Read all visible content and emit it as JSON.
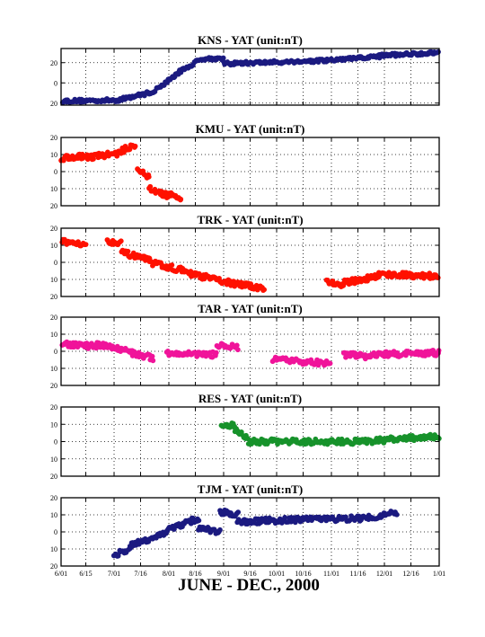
{
  "figure": {
    "xlabel": "JUNE - DEC., 2000",
    "x_tick_labels": [
      "6/01",
      "6/15",
      "7/01",
      "7/16",
      "8/01",
      "8/16",
      "9/01",
      "9/16",
      "10/01",
      "10/16",
      "11/01",
      "11/16",
      "12/01",
      "12/16",
      "1/01"
    ]
  },
  "chart_data": [
    {
      "type": "scatter",
      "title": "KNS - YAT (unit:nT)",
      "color": "#1b1a80",
      "xlim": [
        0,
        214
      ],
      "ylim": [
        -22,
        34
      ],
      "y_ticks": [
        -20,
        0,
        20
      ],
      "y_tick_labels": [
        "20",
        "0",
        "20"
      ],
      "grid": true,
      "x_unit": "days since 6/01/2000",
      "segments": [
        {
          "x": [
            0,
            32
          ],
          "y": [
            -18,
            -17
          ]
        },
        {
          "x": [
            32,
            52
          ],
          "y": [
            -17,
            -9
          ]
        },
        {
          "x": [
            52,
            68
          ],
          "y": [
            -9,
            12
          ]
        },
        {
          "x": [
            68,
            80
          ],
          "y": [
            12,
            24
          ]
        },
        {
          "x": [
            80,
            92
          ],
          "y": [
            24,
            24
          ]
        },
        {
          "x": [
            92,
            150
          ],
          "y": [
            19,
            22
          ]
        },
        {
          "x": [
            150,
            180
          ],
          "y": [
            22,
            26
          ]
        },
        {
          "x": [
            180,
            214
          ],
          "y": [
            27,
            30
          ]
        }
      ]
    },
    {
      "type": "scatter",
      "title": "KMU - YAT (unit:nT)",
      "color": "#ff1100",
      "xlim": [
        0,
        214
      ],
      "ylim": [
        -20,
        20
      ],
      "y_ticks": [
        -20,
        -10,
        0,
        10,
        20
      ],
      "y_tick_labels": [
        "20",
        "10",
        "0",
        "10",
        "20"
      ],
      "grid": true,
      "x_unit": "days since 6/01/2000",
      "segments": [
        {
          "x": [
            0,
            12
          ],
          "y": [
            8,
            9
          ]
        },
        {
          "x": [
            12,
            34
          ],
          "y": [
            8,
            11
          ]
        },
        {
          "x": [
            34,
            42
          ],
          "y": [
            12,
            16
          ]
        },
        {
          "x": [
            43,
            50
          ],
          "y": [
            2,
            -4
          ]
        },
        {
          "x": [
            50,
            60
          ],
          "y": [
            -10,
            -14
          ]
        },
        {
          "x": [
            60,
            68
          ],
          "y": [
            -13,
            -16
          ]
        }
      ]
    },
    {
      "type": "scatter",
      "title": "TRK - YAT (unit:nT)",
      "color": "#ff1100",
      "xlim": [
        0,
        214
      ],
      "ylim": [
        -20,
        20
      ],
      "y_ticks": [
        -20,
        -10,
        0,
        10,
        20
      ],
      "y_tick_labels": [
        "20",
        "10",
        "0",
        "10",
        "20"
      ],
      "grid": true,
      "x_unit": "days since 6/01/2000",
      "segments": [
        {
          "x": [
            0,
            14
          ],
          "y": [
            12,
            11
          ]
        },
        {
          "x": [
            26,
            34
          ],
          "y": [
            12,
            12
          ]
        },
        {
          "x": [
            34,
            50
          ],
          "y": [
            6,
            1
          ]
        },
        {
          "x": [
            50,
            70
          ],
          "y": [
            0,
            -5
          ]
        },
        {
          "x": [
            70,
            100
          ],
          "y": [
            -6,
            -13
          ]
        },
        {
          "x": [
            100,
            115
          ],
          "y": [
            -13,
            -15
          ]
        },
        {
          "x": [
            150,
            160
          ],
          "y": [
            -11,
            -14
          ]
        },
        {
          "x": [
            160,
            180
          ],
          "y": [
            -12,
            -8
          ]
        },
        {
          "x": [
            180,
            214
          ],
          "y": [
            -7,
            -8
          ]
        }
      ]
    },
    {
      "type": "scatter",
      "title": "TAR - YAT (unit:nT)",
      "color": "#f0149a",
      "xlim": [
        0,
        214
      ],
      "ylim": [
        -20,
        20
      ],
      "y_ticks": [
        -20,
        -10,
        0,
        10,
        20
      ],
      "y_tick_labels": [
        "20",
        "10",
        "0",
        "10",
        "20"
      ],
      "grid": true,
      "x_unit": "days since 6/01/2000",
      "segments": [
        {
          "x": [
            0,
            20
          ],
          "y": [
            4,
            3
          ]
        },
        {
          "x": [
            20,
            40
          ],
          "y": [
            4,
            0
          ]
        },
        {
          "x": [
            40,
            52
          ],
          "y": [
            -1,
            -4
          ]
        },
        {
          "x": [
            60,
            88
          ],
          "y": [
            -1,
            -2
          ]
        },
        {
          "x": [
            88,
            100
          ],
          "y": [
            4,
            2
          ]
        },
        {
          "x": [
            120,
            152
          ],
          "y": [
            -5,
            -7
          ]
        },
        {
          "x": [
            160,
            175
          ],
          "y": [
            -2,
            -3
          ]
        },
        {
          "x": [
            175,
            214
          ],
          "y": [
            -2,
            -1
          ]
        }
      ]
    },
    {
      "type": "scatter",
      "title": "RES - YAT (unit:nT)",
      "color": "#17922b",
      "xlim": [
        0,
        214
      ],
      "ylim": [
        -20,
        20
      ],
      "y_ticks": [
        -20,
        -10,
        0,
        10,
        20
      ],
      "y_tick_labels": [
        "20",
        "10",
        "0",
        "10",
        "20"
      ],
      "grid": true,
      "x_unit": "days since 6/01/2000",
      "segments": [
        {
          "x": [
            91,
            98
          ],
          "y": [
            8,
            10
          ]
        },
        {
          "x": [
            98,
            106
          ],
          "y": [
            7,
            2
          ]
        },
        {
          "x": [
            106,
            170
          ],
          "y": [
            0,
            0
          ]
        },
        {
          "x": [
            170,
            214
          ],
          "y": [
            0,
            3
          ]
        }
      ]
    },
    {
      "type": "scatter",
      "title": "TJM - YAT (unit:nT)",
      "color": "#1b1a80",
      "xlim": [
        0,
        214
      ],
      "ylim": [
        -20,
        20
      ],
      "y_ticks": [
        -20,
        -10,
        0,
        10,
        20
      ],
      "y_tick_labels": [
        "20",
        "10",
        "0",
        "10",
        "20"
      ],
      "grid": true,
      "x_unit": "days since 6/01/2000",
      "segments": [
        {
          "x": [
            30,
            40
          ],
          "y": [
            -14,
            -9
          ]
        },
        {
          "x": [
            40,
            60
          ],
          "y": [
            -8,
            0
          ]
        },
        {
          "x": [
            60,
            78
          ],
          "y": [
            1,
            8
          ]
        },
        {
          "x": [
            78,
            90
          ],
          "y": [
            2,
            0
          ]
        },
        {
          "x": [
            90,
            100
          ],
          "y": [
            12,
            10
          ]
        },
        {
          "x": [
            100,
            130
          ],
          "y": [
            6,
            7
          ]
        },
        {
          "x": [
            130,
            170
          ],
          "y": [
            7,
            8
          ]
        },
        {
          "x": [
            170,
            190
          ],
          "y": [
            8,
            11
          ]
        }
      ]
    }
  ]
}
